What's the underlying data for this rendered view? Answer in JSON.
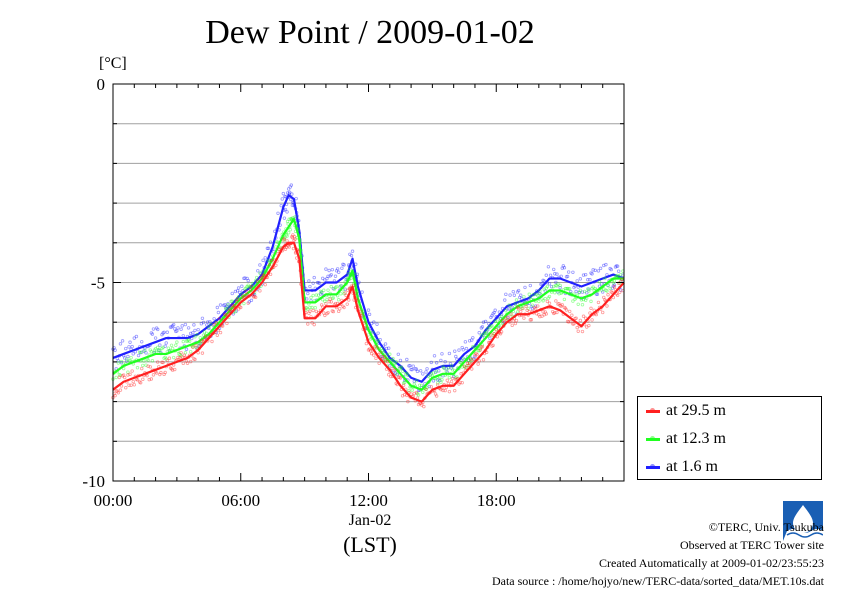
{
  "title": "Dew Point / 2009-01-02",
  "unit_label": "[°C]",
  "x_axis": {
    "tick_labels": [
      "00:00",
      "06:00",
      "12:00",
      "18:00"
    ],
    "date_label": "Jan-02",
    "zone_label": "(LST)"
  },
  "y_axis": {
    "tick_labels": [
      "0",
      "-5",
      "-10"
    ]
  },
  "legend": {
    "items": [
      {
        "label": "at 29.5 m",
        "color": "#ff2020"
      },
      {
        "label": "at 12.3 m",
        "color": "#20ff20"
      },
      {
        "label": "at 1.6 m",
        "color": "#2020ff"
      }
    ]
  },
  "credits": {
    "copyright": "©TERC, Univ. Tsukuba",
    "observed": "Observed at TERC Tower site",
    "created": "Created Automatically at 2009-01-02/23:55:23",
    "source": "Data source : /home/hojyo/new/TERC-data/sorted_data/MET.10s.dat"
  },
  "logo_icon": "terc-logo-icon",
  "chart_data": {
    "type": "line",
    "x_unit": "hour",
    "xlim": [
      0,
      24
    ],
    "ylim": [
      -10,
      0
    ],
    "y_major_ticks": [
      0,
      -5,
      -10
    ],
    "y_grid_step": 1,
    "grid": true,
    "legend_position": "bottom-right outside",
    "x": [
      0,
      0.5,
      1,
      1.5,
      2,
      2.5,
      3,
      3.5,
      4,
      4.5,
      5,
      5.5,
      6,
      6.5,
      7,
      7.5,
      8,
      8.25,
      8.5,
      8.75,
      9,
      9.5,
      10,
      10.5,
      11,
      11.25,
      11.5,
      12,
      12.5,
      13,
      13.5,
      14,
      14.5,
      15,
      15.5,
      16,
      16.5,
      17,
      17.5,
      18,
      18.5,
      19,
      19.5,
      20,
      20.5,
      21,
      21.5,
      22,
      22.5,
      23,
      23.5,
      24
    ],
    "series": [
      {
        "name": "at 29.5 m",
        "color": "#ff2020",
        "values": [
          -7.7,
          -7.5,
          -7.4,
          -7.3,
          -7.2,
          -7.1,
          -7.0,
          -6.9,
          -6.7,
          -6.4,
          -6.1,
          -5.8,
          -5.5,
          -5.3,
          -5.0,
          -4.6,
          -4.1,
          -4.0,
          -4.0,
          -4.4,
          -5.9,
          -5.9,
          -5.6,
          -5.6,
          -5.4,
          -5.1,
          -5.7,
          -6.5,
          -6.9,
          -7.2,
          -7.6,
          -7.9,
          -8.0,
          -7.7,
          -7.6,
          -7.6,
          -7.3,
          -7.0,
          -6.7,
          -6.3,
          -6.0,
          -5.8,
          -5.8,
          -5.7,
          -5.6,
          -5.7,
          -5.9,
          -6.1,
          -5.8,
          -5.6,
          -5.3,
          -5.0
        ]
      },
      {
        "name": "at 12.3 m",
        "color": "#20ff20",
        "values": [
          -7.3,
          -7.1,
          -7.0,
          -6.9,
          -6.8,
          -6.8,
          -6.7,
          -6.6,
          -6.5,
          -6.3,
          -6.0,
          -5.7,
          -5.4,
          -5.2,
          -4.9,
          -4.4,
          -3.8,
          -3.6,
          -3.4,
          -3.9,
          -5.5,
          -5.5,
          -5.3,
          -5.3,
          -5.0,
          -4.7,
          -5.4,
          -6.2,
          -6.7,
          -7.0,
          -7.3,
          -7.6,
          -7.7,
          -7.4,
          -7.3,
          -7.3,
          -7.0,
          -6.7,
          -6.4,
          -6.1,
          -5.8,
          -5.6,
          -5.5,
          -5.4,
          -5.2,
          -5.2,
          -5.3,
          -5.4,
          -5.3,
          -5.1,
          -4.9,
          -4.9
        ]
      },
      {
        "name": "at 1.6 m",
        "color": "#2020ff",
        "values": [
          -6.9,
          -6.8,
          -6.7,
          -6.6,
          -6.5,
          -6.4,
          -6.4,
          -6.4,
          -6.3,
          -6.1,
          -5.9,
          -5.6,
          -5.3,
          -5.1,
          -4.8,
          -4.1,
          -3.1,
          -2.8,
          -2.9,
          -3.7,
          -5.2,
          -5.2,
          -5.0,
          -5.0,
          -4.8,
          -4.4,
          -5.1,
          -6.0,
          -6.5,
          -6.9,
          -7.1,
          -7.4,
          -7.5,
          -7.2,
          -7.1,
          -7.1,
          -6.8,
          -6.6,
          -6.2,
          -5.9,
          -5.6,
          -5.5,
          -5.4,
          -5.2,
          -4.9,
          -4.9,
          -5.0,
          -5.1,
          -5.0,
          -4.9,
          -4.8,
          -4.9
        ]
      }
    ]
  }
}
